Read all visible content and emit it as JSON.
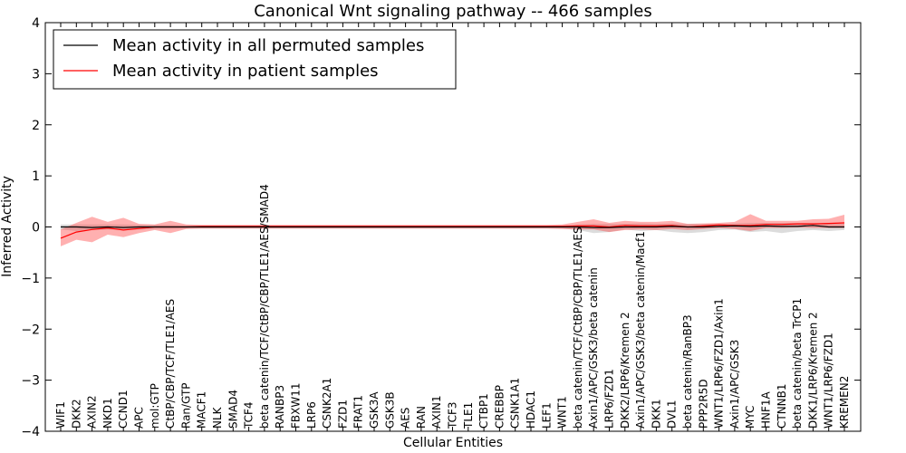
{
  "chart_data": {
    "type": "line",
    "title": "Canonical Wnt signaling pathway -- 466 samples",
    "xlabel": "Cellular Entities",
    "ylabel": "Inferred Activity",
    "ylim": [
      -4,
      4
    ],
    "yticks": [
      "−4",
      "−3",
      "−2",
      "−1",
      "0",
      "1",
      "2",
      "3",
      "4"
    ],
    "grid": false,
    "legend_position": "top-left",
    "categories": [
      "WIF1",
      "DKK2",
      "AXIN2",
      "NKD1",
      "CCND1",
      "APC",
      "mol:GTP",
      "CtBP/CBP/TCF/TLE1/AES",
      "Ran/GTP",
      "MACF1",
      "NLK",
      "SMAD4",
      "TCF4",
      "beta catenin/TCF/CtBP/CBP/TLE1/AES/SMAD4",
      "RANBP3",
      "FBXW11",
      "LRP6",
      "CSNK2A1",
      "FZD1",
      "FRAT1",
      "GSK3A",
      "GSK3B",
      "AES",
      "RAN",
      "AXIN1",
      "TCF3",
      "TLE1",
      "CTBP1",
      "CREBBP",
      "CSNK1A1",
      "HDAC1",
      "LEF1",
      "WNT1",
      "beta catenin/TCF/CtBP/CBP/TLE1/AES",
      "Axin1/APC/GSK3/beta catenin",
      "LRP6/FZD1",
      "DKK2/LRP6/Kremen 2",
      "Axin1/APC/GSK3/beta catenin/Macf1",
      "DKK1",
      "DVL1",
      "beta catenin/RanBP3",
      "PPP2R5D",
      "WNT1/LRP6/FZD1/Axin1",
      "Axin1/APC/GSK3",
      "MYC",
      "HNF1A",
      "CTNNB1",
      "beta catenin/beta TrCP1",
      "DKK1/LRP6/Kremen 2",
      "WNT1/LRP6/FZD1",
      "KREMEN2"
    ],
    "series": [
      {
        "name": "Mean activity in all permuted samples",
        "color": "#000000",
        "values": [
          0.0,
          0.0,
          -0.01,
          0.0,
          -0.01,
          0.0,
          0.0,
          0.0,
          0.0,
          0.0,
          0.0,
          0.0,
          0.0,
          0.0,
          0.0,
          0.0,
          0.0,
          0.0,
          0.0,
          0.0,
          0.0,
          0.0,
          0.0,
          0.0,
          0.0,
          0.0,
          0.0,
          0.0,
          0.0,
          0.0,
          0.0,
          0.0,
          0.0,
          0.0,
          -0.01,
          -0.01,
          0.0,
          0.0,
          0.0,
          0.01,
          0.0,
          0.0,
          0.01,
          0.02,
          0.01,
          0.02,
          0.01,
          0.01,
          0.03,
          0.0,
          0.0
        ],
        "band_lower": [
          -0.05,
          -0.08,
          -0.06,
          -0.05,
          -0.06,
          -0.05,
          -0.04,
          -0.04,
          -0.03,
          -0.03,
          -0.03,
          -0.03,
          -0.03,
          -0.03,
          -0.03,
          -0.03,
          -0.03,
          -0.03,
          -0.03,
          -0.03,
          -0.03,
          -0.03,
          -0.03,
          -0.03,
          -0.03,
          -0.03,
          -0.03,
          -0.03,
          -0.03,
          -0.03,
          -0.03,
          -0.03,
          -0.03,
          -0.06,
          -0.12,
          -0.1,
          -0.05,
          -0.08,
          -0.06,
          -0.1,
          -0.12,
          -0.1,
          -0.06,
          -0.05,
          -0.1,
          -0.08,
          -0.12,
          -0.08,
          -0.06,
          -0.08,
          -0.06
        ],
        "band_upper": [
          0.05,
          0.05,
          0.05,
          0.05,
          0.05,
          0.04,
          0.04,
          0.04,
          0.03,
          0.03,
          0.03,
          0.03,
          0.03,
          0.03,
          0.03,
          0.03,
          0.03,
          0.03,
          0.03,
          0.03,
          0.03,
          0.03,
          0.03,
          0.03,
          0.03,
          0.03,
          0.03,
          0.03,
          0.03,
          0.03,
          0.03,
          0.03,
          0.03,
          0.05,
          0.06,
          0.06,
          0.06,
          0.07,
          0.06,
          0.07,
          0.06,
          0.06,
          0.06,
          0.07,
          0.08,
          0.08,
          0.08,
          0.08,
          0.08,
          0.06,
          0.06
        ]
      },
      {
        "name": "Mean activity in patient samples",
        "color": "#ff0000",
        "values": [
          -0.22,
          -0.1,
          -0.05,
          -0.02,
          -0.06,
          -0.03,
          0.0,
          0.0,
          0.0,
          0.01,
          0.01,
          0.01,
          0.01,
          0.01,
          0.01,
          0.01,
          0.01,
          0.01,
          0.01,
          0.01,
          0.01,
          0.01,
          0.01,
          0.01,
          0.01,
          0.01,
          0.01,
          0.01,
          0.01,
          0.01,
          0.01,
          0.01,
          0.01,
          0.02,
          0.02,
          0.0,
          0.03,
          0.02,
          0.02,
          0.03,
          0.0,
          0.02,
          0.04,
          0.03,
          0.03,
          0.05,
          0.05,
          0.06,
          0.06,
          0.07,
          0.08
        ],
        "band_lower": [
          -0.38,
          -0.25,
          -0.3,
          -0.15,
          -0.2,
          -0.12,
          -0.06,
          -0.12,
          -0.04,
          -0.03,
          -0.03,
          -0.03,
          -0.03,
          -0.03,
          -0.03,
          -0.03,
          -0.03,
          -0.03,
          -0.03,
          -0.03,
          -0.03,
          -0.03,
          -0.03,
          -0.03,
          -0.03,
          -0.03,
          -0.03,
          -0.03,
          -0.03,
          -0.03,
          -0.03,
          -0.03,
          -0.04,
          -0.05,
          -0.05,
          -0.1,
          -0.06,
          -0.05,
          -0.06,
          -0.04,
          -0.06,
          -0.04,
          -0.02,
          -0.04,
          -0.08,
          -0.02,
          -0.02,
          -0.01,
          -0.02,
          -0.02,
          -0.02
        ],
        "band_upper": [
          -0.05,
          0.08,
          0.2,
          0.1,
          0.18,
          0.06,
          0.05,
          0.12,
          0.05,
          0.04,
          0.04,
          0.04,
          0.04,
          0.04,
          0.04,
          0.04,
          0.04,
          0.04,
          0.04,
          0.04,
          0.04,
          0.04,
          0.04,
          0.04,
          0.04,
          0.04,
          0.04,
          0.04,
          0.04,
          0.04,
          0.04,
          0.04,
          0.05,
          0.1,
          0.15,
          0.08,
          0.12,
          0.1,
          0.1,
          0.12,
          0.06,
          0.07,
          0.08,
          0.1,
          0.25,
          0.12,
          0.12,
          0.12,
          0.15,
          0.16,
          0.24
        ]
      }
    ]
  }
}
